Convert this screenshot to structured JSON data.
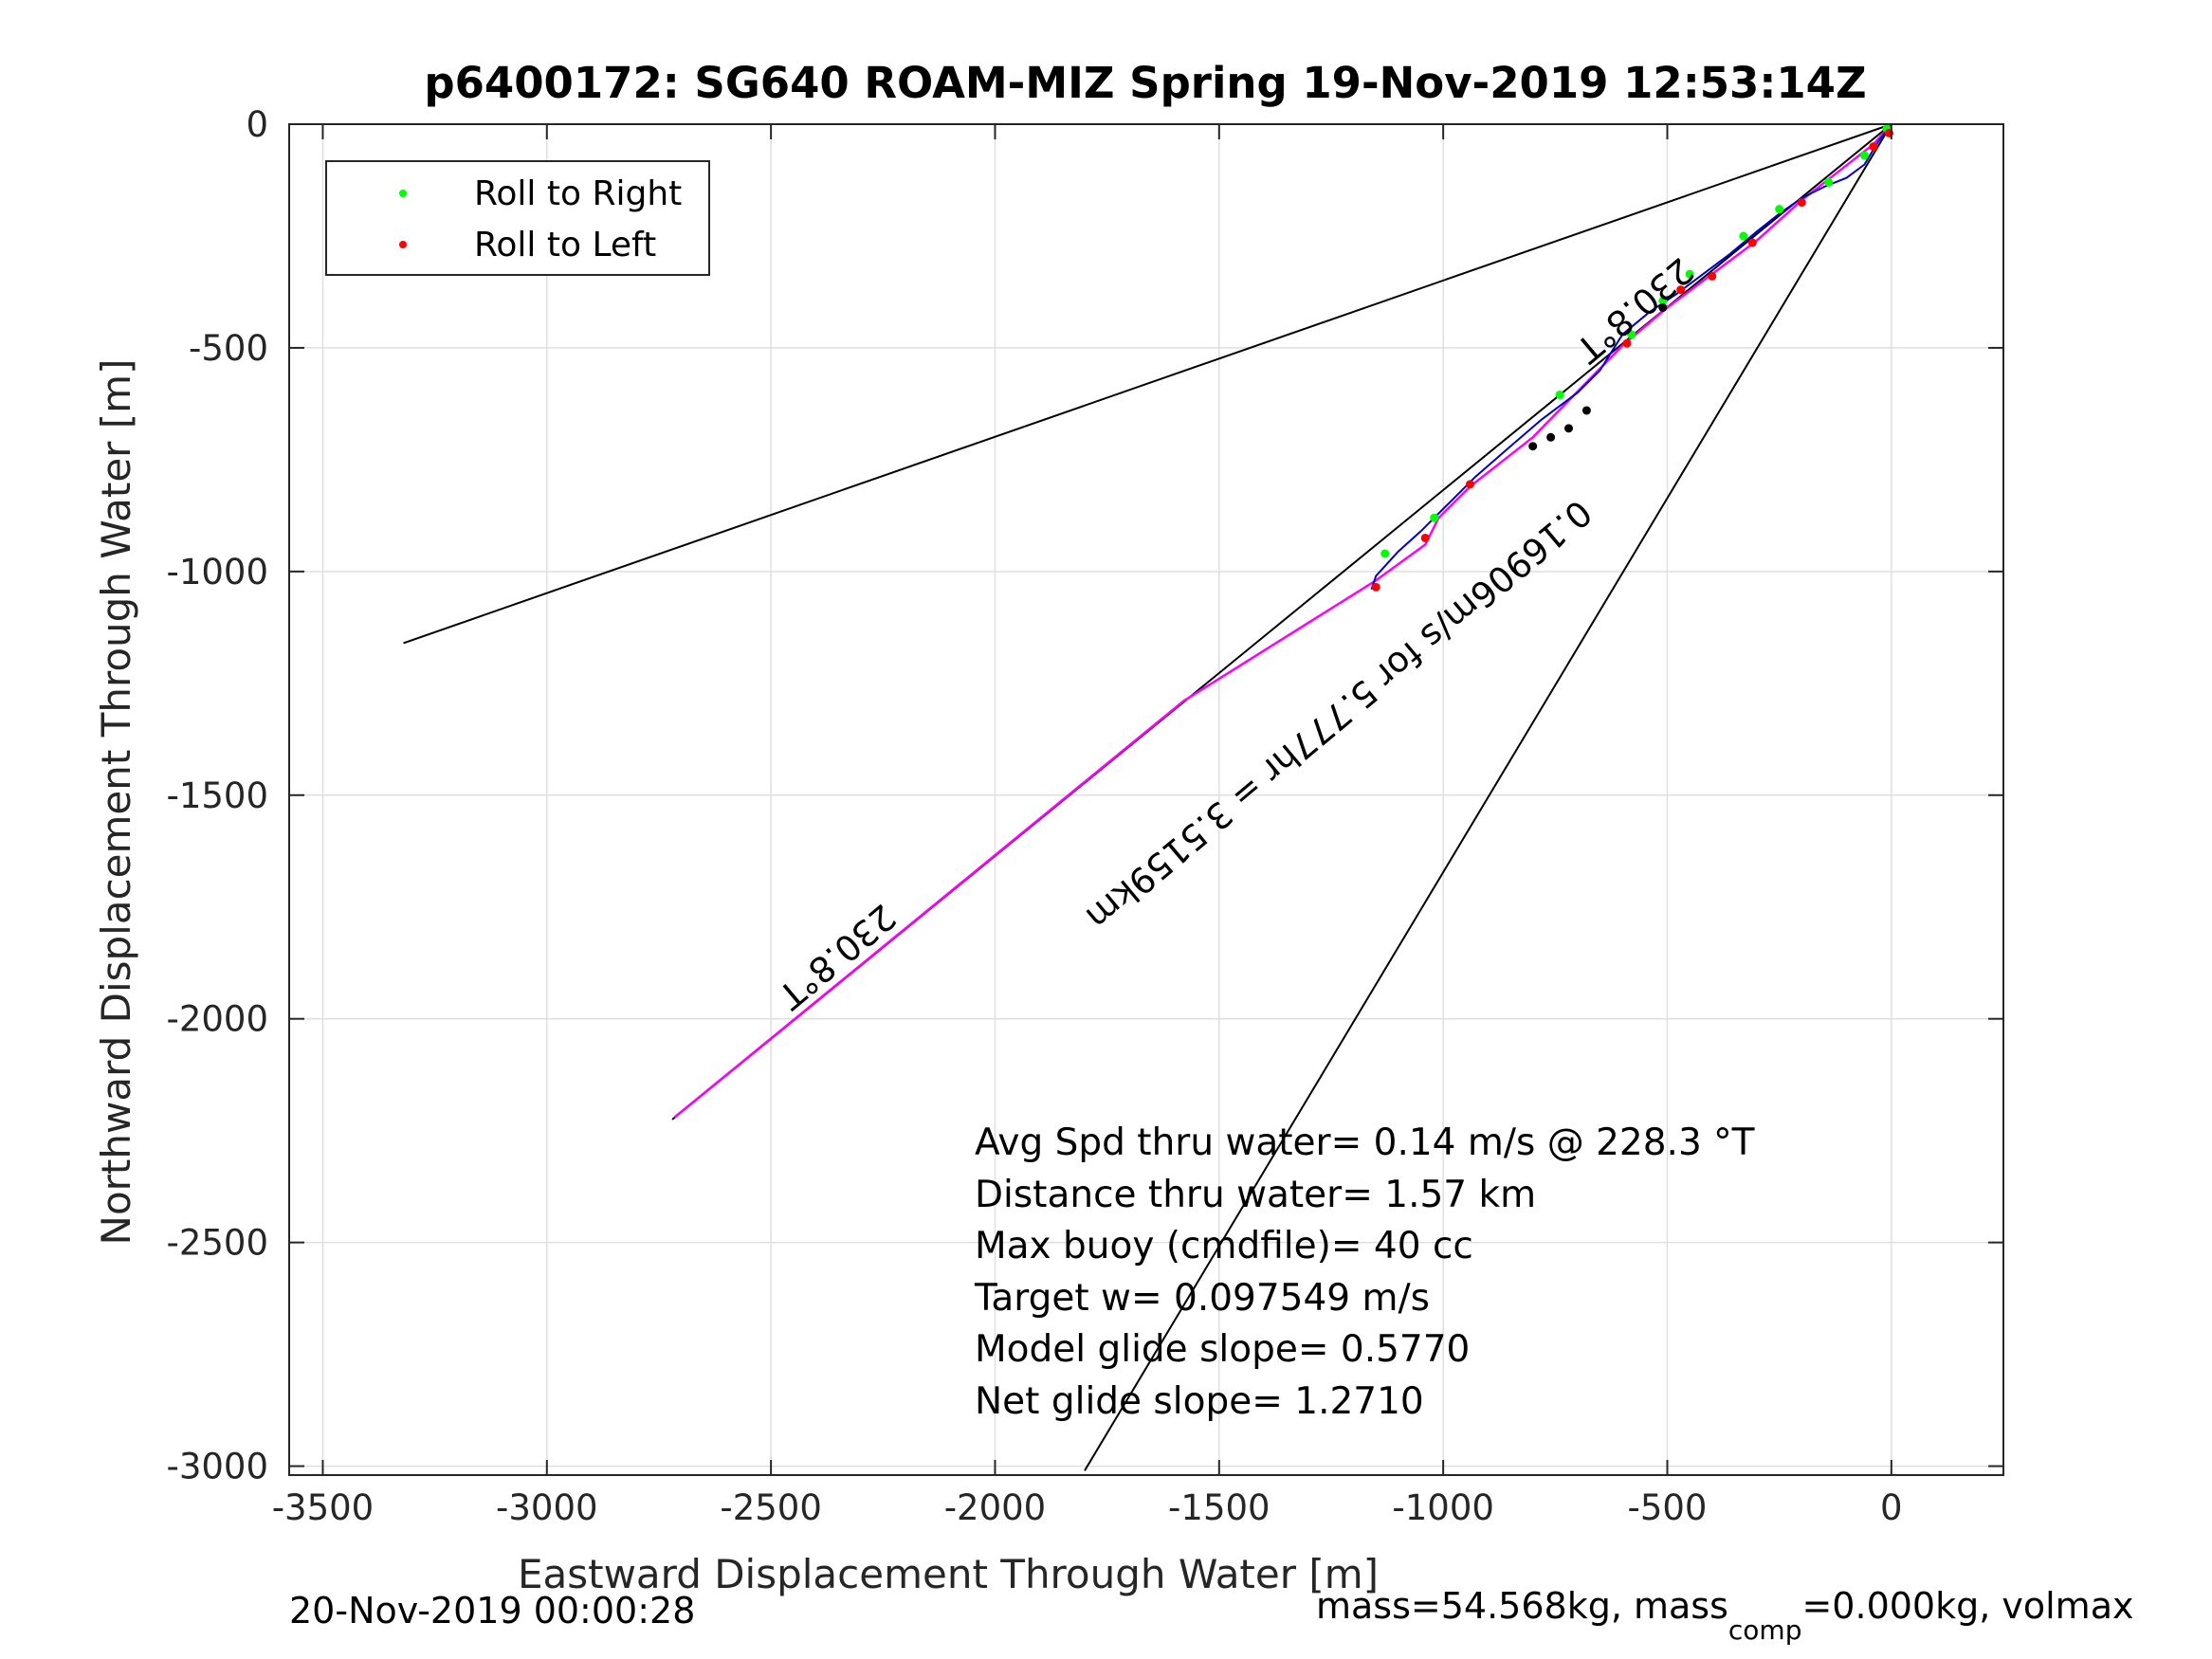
{
  "chart_data": {
    "type": "line",
    "title": "p6400172: SG640 ROAM-MIZ Spring 19-Nov-2019 12:53:14Z",
    "xlabel": "Eastward Displacement Through Water [m]",
    "ylabel": "Northward Displacement Through Water [m]",
    "xlim": [
      -3575,
      250
    ],
    "ylim": [
      -3020,
      0
    ],
    "grid": true,
    "xticks": [
      -3500,
      -3000,
      -2500,
      -2000,
      -1500,
      -1000,
      -500,
      0
    ],
    "yticks": [
      0,
      -500,
      -1000,
      -1500,
      -2000,
      -2500,
      -3000
    ],
    "legend": {
      "position": "top-left",
      "entries": [
        {
          "label": "Roll to Right",
          "color": "#00ff00"
        },
        {
          "label": "Roll to Left",
          "color": "#ff0000"
        }
      ]
    },
    "series": [
      {
        "style": "black-line",
        "points": [
          [
            -3320,
            -1160
          ],
          [
            0,
            0
          ]
        ]
      },
      {
        "style": "black-line",
        "points": [
          [
            -1800,
            -3010
          ],
          [
            0,
            0
          ]
        ]
      },
      {
        "style": "black-line",
        "points": [
          [
            -2720,
            -2225
          ],
          [
            0,
            0
          ]
        ]
      },
      {
        "style": "magenta-line",
        "points": [
          [
            -2715,
            -2220
          ],
          [
            -1580,
            -1290
          ],
          [
            -1150,
            -1020
          ],
          [
            -1040,
            -940
          ],
          [
            -1010,
            -880
          ],
          [
            -940,
            -810
          ],
          [
            -800,
            -700
          ],
          [
            -600,
            -495
          ],
          [
            -500,
            -410
          ],
          [
            -300,
            -260
          ],
          [
            -200,
            -170
          ],
          [
            -40,
            -45
          ],
          [
            0,
            0
          ]
        ]
      },
      {
        "style": "blue-track",
        "points": [
          [
            0,
            0
          ],
          [
            -30,
            -40
          ],
          [
            -60,
            -90
          ],
          [
            -100,
            -120
          ],
          [
            -150,
            -140
          ],
          [
            -200,
            -165
          ],
          [
            -250,
            -200
          ],
          [
            -300,
            -240
          ],
          [
            -360,
            -290
          ],
          [
            -420,
            -335
          ],
          [
            -480,
            -380
          ],
          [
            -540,
            -420
          ],
          [
            -600,
            -470
          ],
          [
            -650,
            -550
          ],
          [
            -700,
            -600
          ],
          [
            -780,
            -660
          ],
          [
            -850,
            -720
          ],
          [
            -930,
            -790
          ],
          [
            -980,
            -840
          ],
          [
            -1020,
            -880
          ],
          [
            -1050,
            -910
          ],
          [
            -1100,
            -955
          ],
          [
            -1150,
            -1010
          ],
          [
            -1160,
            -1040
          ]
        ]
      },
      {
        "style": "green-dots",
        "points": [
          [
            -10,
            -10
          ],
          [
            -60,
            -70
          ],
          [
            -140,
            -130
          ],
          [
            -250,
            -190
          ],
          [
            -330,
            -250
          ],
          [
            -450,
            -335
          ],
          [
            -510,
            -395
          ],
          [
            -580,
            -470
          ],
          [
            -740,
            -605
          ],
          [
            -1020,
            -880
          ],
          [
            -1130,
            -960
          ]
        ]
      },
      {
        "style": "red-dots",
        "points": [
          [
            -5,
            -20
          ],
          [
            -40,
            -50
          ],
          [
            -200,
            -175
          ],
          [
            -310,
            -265
          ],
          [
            -400,
            -340
          ],
          [
            -470,
            -370
          ],
          [
            -590,
            -490
          ],
          [
            -940,
            -805
          ],
          [
            -1040,
            -925
          ],
          [
            -1150,
            -1035
          ]
        ]
      },
      {
        "style": "black-dots",
        "points": [
          [
            -510,
            -410
          ],
          [
            -680,
            -640
          ],
          [
            -720,
            -680
          ],
          [
            -760,
            -700
          ],
          [
            -800,
            -720
          ]
        ]
      }
    ],
    "annotations": [
      {
        "text": "230.8°T",
        "x": -2370,
        "y": -1840,
        "angle": 140
      },
      {
        "text": "230.8°T",
        "x": -590,
        "y": -395,
        "angle": 140
      },
      {
        "text": "0.16906m/s for 5.777hr = 3.5159km",
        "x": -1250,
        "y": -1300,
        "angle": 140
      }
    ],
    "stats_lines": [
      "Avg Spd thru water=  0.14 m/s @ 228.3 °T",
      "Distance thru water=  1.57 km",
      "Max buoy (cmdfile)= 40 cc",
      "Target w= 0.097549 m/s",
      "Model glide slope= 0.5770",
      "Net glide slope= 1.2710"
    ]
  },
  "footer": {
    "timestamp": "20-Nov-2019 00:00:28",
    "mass_prefix": "mass=54.568kg, mass",
    "mass_sub": "comp",
    "mass_suffix": "=0.000kg, volmax"
  }
}
